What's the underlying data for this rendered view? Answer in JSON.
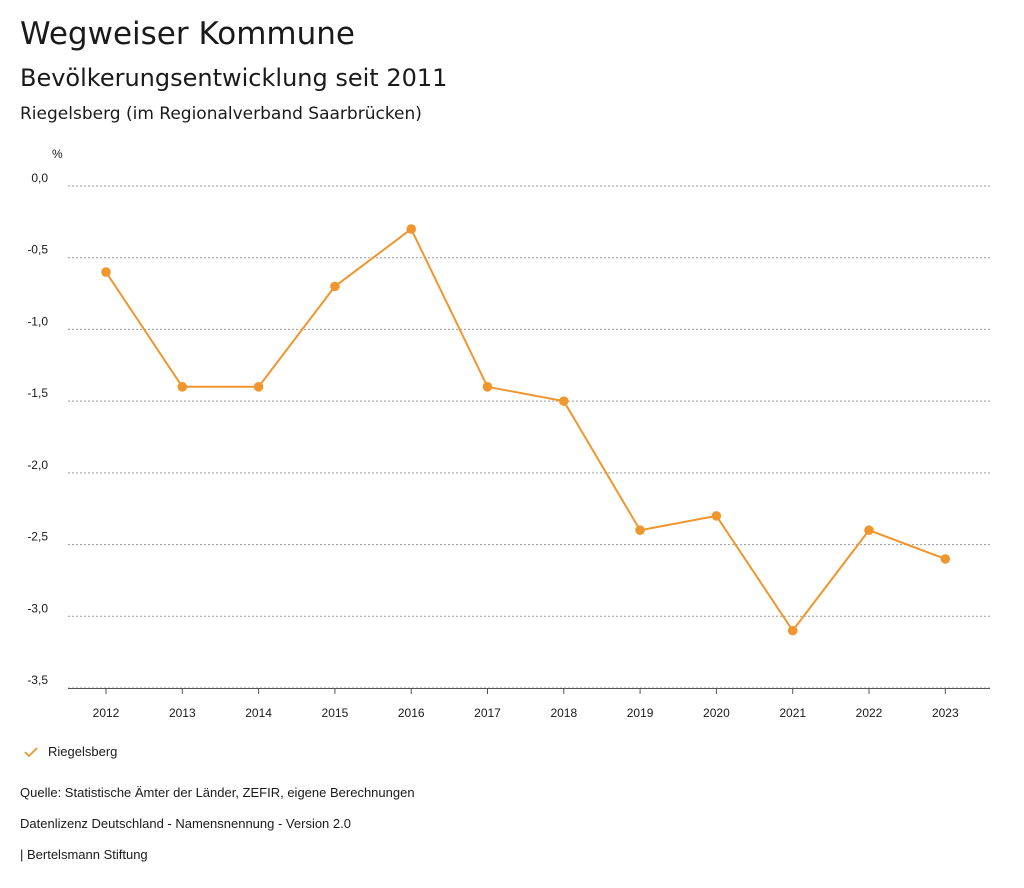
{
  "header": {
    "title": "Wegweiser Kommune",
    "subtitle": "Bevölkerungsentwicklung seit 2011",
    "region": "Riegelsberg (im Regionalverband Saarbrücken)"
  },
  "chart_data": {
    "type": "line",
    "title": "Bevölkerungsentwicklung seit 2011",
    "ylabel": "%",
    "xlabel": "",
    "ylim": [
      -3.5,
      0.0
    ],
    "yticks": [
      "0,0",
      "-0,5",
      "-1,0",
      "-1,5",
      "-2,0",
      "-2,5",
      "-3,0",
      "-3,5"
    ],
    "ytick_values": [
      0.0,
      -0.5,
      -1.0,
      -1.5,
      -2.0,
      -2.5,
      -3.0,
      -3.5
    ],
    "categories": [
      "2012",
      "2013",
      "2014",
      "2015",
      "2016",
      "2017",
      "2018",
      "2019",
      "2020",
      "2021",
      "2022",
      "2023"
    ],
    "series": [
      {
        "name": "Riegelsberg",
        "color": "#f0962e",
        "values": [
          -0.6,
          -1.4,
          -1.4,
          -0.7,
          -0.3,
          -1.4,
          -1.5,
          -2.4,
          -2.3,
          -3.1,
          -2.4,
          -2.6
        ]
      }
    ],
    "grid": true,
    "legend": "bottom-left"
  },
  "legend": {
    "label": "Riegelsberg",
    "color": "#f0962e"
  },
  "footer": {
    "source": "Quelle: Statistische Ämter der Länder, ZEFIR, eigene Berechnungen",
    "license": "Datenlizenz Deutschland - Namensnennung - Version 2.0",
    "publisher": "| Bertelsmann Stiftung"
  }
}
